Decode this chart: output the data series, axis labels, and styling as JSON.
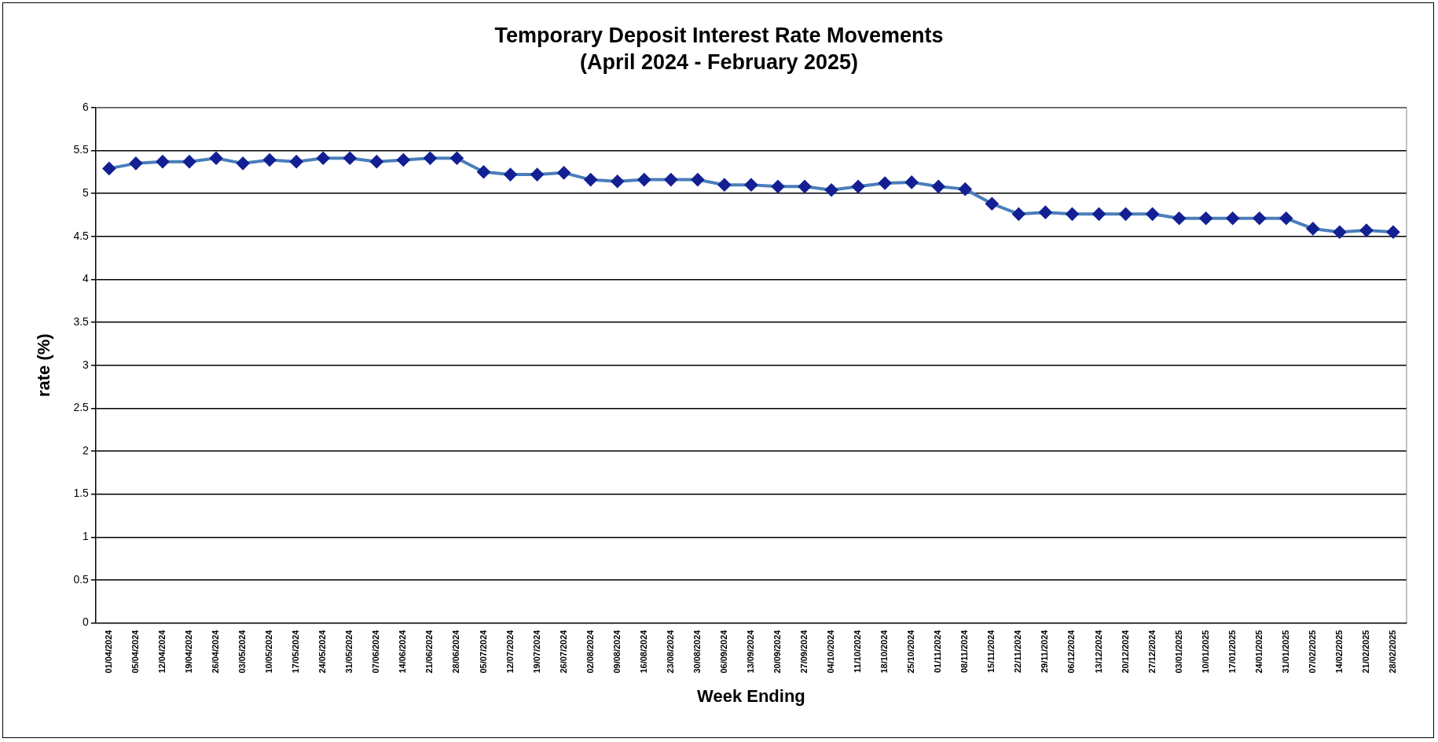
{
  "chart_data": {
    "type": "line",
    "title": "Temporary Deposit Interest Rate Movements",
    "subtitle": "(April 2024 - February 2025)",
    "xlabel": "Week Ending",
    "ylabel": "rate (%)",
    "categories": [
      "01/04/2024",
      "05/04/2024",
      "12/04/2024",
      "19/04/2024",
      "26/04/2024",
      "03/05/2024",
      "10/05/2024",
      "17/05/2024",
      "24/05/2024",
      "31/05/2024",
      "07/06/2024",
      "14/06/2024",
      "21/06/2024",
      "28/06/2024",
      "05/07/2024",
      "12/07/2024",
      "19/07/2024",
      "26/07/2024",
      "02/08/2024",
      "09/08/2024",
      "16/08/2024",
      "23/08/2024",
      "30/08/2024",
      "06/09/2024",
      "13/09/2024",
      "20/09/2024",
      "27/09/2024",
      "04/10/2024",
      "11/10/2024",
      "18/10/2024",
      "25/10/2024",
      "01/11/2024",
      "08/11/2024",
      "15/11/2024",
      "22/11/2024",
      "29/11/2024",
      "06/12/2024",
      "13/12/2024",
      "20/12/2024",
      "27/12/2024",
      "03/01/2025",
      "10/01/2025",
      "17/01/2025",
      "24/01/2025",
      "31/01/2025",
      "07/02/2025",
      "14/02/2025",
      "21/02/2025",
      "28/02/2025"
    ],
    "series": [
      {
        "color": "#4a7ebb",
        "values": [
          5.29,
          5.35,
          5.37,
          5.37,
          5.41,
          5.35,
          5.39,
          5.37,
          5.41,
          5.41,
          5.37,
          5.39,
          5.41,
          5.41,
          5.25,
          5.22,
          5.22,
          5.24,
          5.16,
          5.14,
          5.16,
          5.16,
          5.16,
          5.1,
          5.1,
          5.08,
          5.08,
          5.04,
          5.08,
          5.12,
          5.13,
          5.08,
          5.05,
          4.88,
          4.76,
          4.78,
          4.76,
          4.76,
          4.76,
          4.76,
          4.71,
          4.71,
          4.71,
          4.71,
          4.71,
          4.59,
          4.55,
          4.57,
          4.55
        ]
      }
    ],
    "ylim": [
      0,
      6
    ],
    "yticks": [
      0,
      0.5,
      1,
      1.5,
      2,
      2.5,
      3,
      3.5,
      4,
      4.5,
      5,
      5.5,
      6
    ],
    "grid": "y",
    "marker": "diamond",
    "line_style": "solid",
    "legend": false
  }
}
